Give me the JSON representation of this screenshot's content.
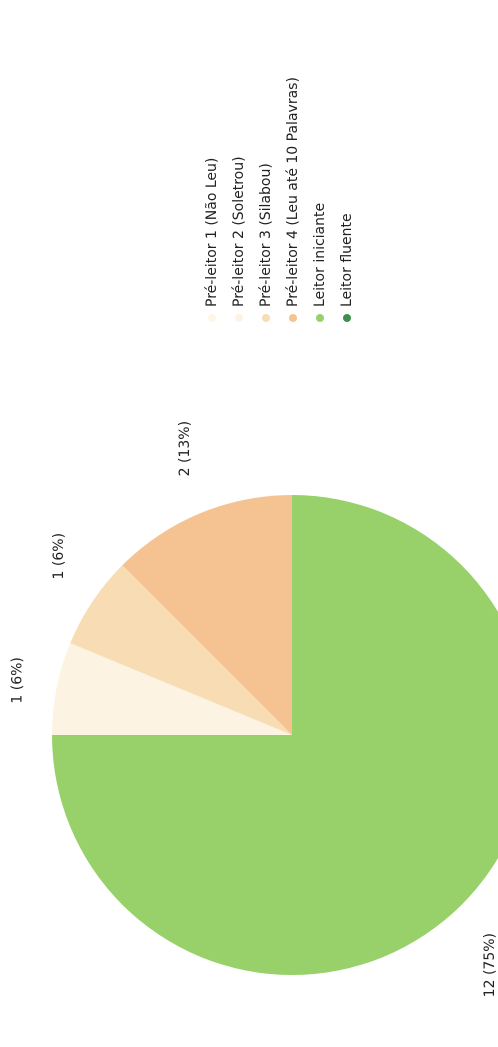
{
  "chart_data": {
    "type": "pie",
    "categories": [
      "Pré-leitor 1 (Não Leu)",
      "Pré-leitor 2 (Soletrou)",
      "Pré-leitor 3 (Silabou)",
      "Pré-leitor 4 (Leu até 10 Palavras)",
      "Leitor iniciante",
      "Leitor fluente"
    ],
    "values": [
      0,
      1,
      1,
      2,
      12,
      0
    ],
    "value_labels": [
      null,
      "1 (6%)",
      "1 (6%)",
      "2 (13%)",
      "12 (75%)",
      null
    ],
    "colors": [
      "#fdf7e6",
      "#fcf3e3",
      "#f8ddb4",
      "#f5c391",
      "#98d16a",
      "#3f8f4c"
    ],
    "legend": "right"
  }
}
